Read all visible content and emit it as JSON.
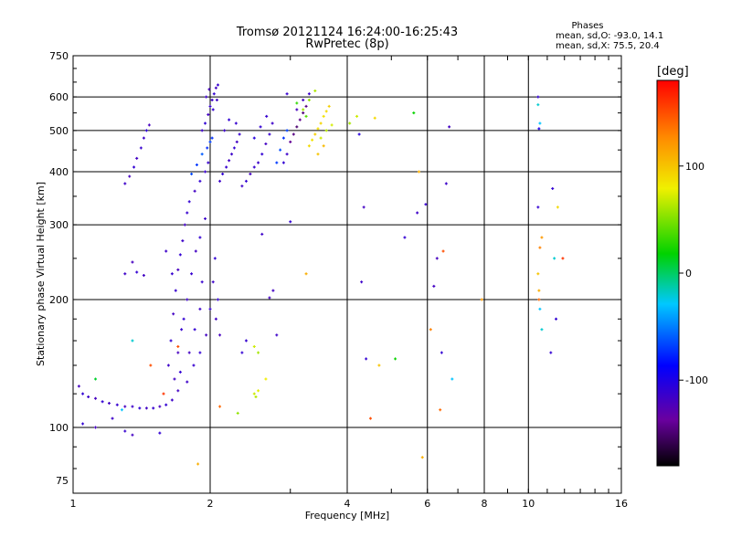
{
  "chart_data": {
    "type": "scatter",
    "title": "Tromsø 20121124 16:24:00-16:25:43",
    "subtitle": "RwPretec (8p)",
    "xlabel": "Frequency [MHz]",
    "ylabel": "Stationary phase Virtual Height [km]",
    "x_scale": "log",
    "y_scale": "log",
    "xlim": [
      1,
      16
    ],
    "ylim": [
      70,
      750
    ],
    "x_ticks": [
      1,
      2,
      4,
      6,
      8,
      10,
      16
    ],
    "y_ticks": [
      75,
      100,
      200,
      300,
      400,
      500,
      600,
      750
    ],
    "grid": true,
    "stats": {
      "heading": "Phases",
      "line_o": "mean, sd,O:  -93.0, 14.1",
      "line_x": "mean, sd,X:  75.5, 20.4"
    },
    "colorbar": {
      "label": "[deg]",
      "range": [
        -180,
        180
      ],
      "ticks": [
        -100,
        0,
        100
      ],
      "palette": "rainbow: black-purple-blue-cyan-green-yellow-orange-red"
    },
    "series": [
      {
        "points": [
          [
            1.03,
            125,
            -120
          ],
          [
            1.05,
            120,
            -110
          ],
          [
            1.08,
            118,
            -115
          ],
          [
            1.12,
            117,
            -120
          ],
          [
            1.16,
            115,
            -110
          ],
          [
            1.2,
            114,
            -118
          ],
          [
            1.25,
            113,
            -112
          ],
          [
            1.3,
            112,
            -120
          ],
          [
            1.35,
            112,
            -115
          ],
          [
            1.4,
            111,
            -108
          ],
          [
            1.45,
            111,
            -118
          ],
          [
            1.5,
            111,
            -112
          ],
          [
            1.55,
            112,
            -120
          ],
          [
            1.6,
            113,
            -110
          ],
          [
            1.65,
            116,
            -115
          ],
          [
            1.7,
            122,
            -118
          ],
          [
            1.05,
            102,
            -110
          ],
          [
            1.12,
            100,
            -120
          ],
          [
            1.22,
            105,
            -115
          ],
          [
            1.3,
            98,
            -112
          ],
          [
            1.35,
            96,
            -118
          ],
          [
            1.55,
            97,
            -110
          ],
          [
            1.3,
            375,
            -115
          ],
          [
            1.33,
            390,
            -120
          ],
          [
            1.36,
            410,
            -110
          ],
          [
            1.38,
            430,
            -118
          ],
          [
            1.41,
            455,
            -112
          ],
          [
            1.43,
            480,
            -115
          ],
          [
            1.45,
            500,
            -108
          ],
          [
            1.47,
            515,
            -120
          ],
          [
            1.3,
            230,
            -115
          ],
          [
            1.38,
            232,
            -110
          ],
          [
            1.43,
            228,
            -118
          ],
          [
            1.35,
            245,
            -120
          ],
          [
            1.62,
            140,
            -115
          ],
          [
            1.64,
            160,
            -110
          ],
          [
            1.66,
            185,
            -118
          ],
          [
            1.68,
            210,
            -112
          ],
          [
            1.7,
            235,
            -120
          ],
          [
            1.72,
            255,
            -110
          ],
          [
            1.74,
            275,
            -115
          ],
          [
            1.76,
            300,
            -118
          ],
          [
            1.78,
            320,
            -112
          ],
          [
            1.8,
            340,
            -110
          ],
          [
            1.75,
            180,
            -110
          ],
          [
            1.78,
            200,
            -115
          ],
          [
            1.82,
            230,
            -112
          ],
          [
            1.86,
            260,
            -118
          ],
          [
            1.9,
            280,
            -110
          ],
          [
            1.95,
            310,
            -115
          ],
          [
            1.7,
            150,
            -120
          ],
          [
            1.73,
            170,
            -112
          ],
          [
            1.8,
            150,
            -118
          ],
          [
            1.85,
            170,
            -110
          ],
          [
            1.9,
            190,
            -115
          ],
          [
            1.92,
            220,
            -112
          ],
          [
            1.67,
            130,
            -118
          ],
          [
            1.72,
            135,
            -110
          ],
          [
            1.78,
            128,
            -115
          ],
          [
            1.84,
            140,
            -112
          ],
          [
            1.9,
            150,
            -110
          ],
          [
            1.96,
            165,
            -118
          ],
          [
            2.0,
            190,
            -112
          ],
          [
            2.03,
            220,
            -115
          ],
          [
            2.05,
            250,
            -110
          ],
          [
            2.06,
            180,
            -118
          ],
          [
            2.08,
            200,
            -112
          ],
          [
            2.1,
            165,
            -120
          ],
          [
            1.6,
            260,
            -115
          ],
          [
            1.65,
            230,
            -112
          ],
          [
            1.85,
            360,
            -118
          ],
          [
            1.9,
            380,
            -110
          ],
          [
            1.95,
            400,
            -115
          ],
          [
            1.98,
            420,
            -112
          ],
          [
            1.82,
            395,
            -65
          ],
          [
            1.87,
            415,
            -70
          ],
          [
            1.92,
            440,
            -60
          ],
          [
            1.97,
            455,
            -75
          ],
          [
            2.0,
            470,
            -68
          ],
          [
            2.02,
            480,
            -72
          ],
          [
            1.92,
            500,
            -115
          ],
          [
            1.95,
            520,
            -110
          ],
          [
            1.98,
            545,
            -118
          ],
          [
            2.0,
            570,
            -112
          ],
          [
            2.02,
            590,
            -115
          ],
          [
            2.04,
            610,
            -110
          ],
          [
            2.06,
            630,
            -118
          ],
          [
            2.08,
            640,
            -112
          ],
          [
            1.96,
            600,
            -115
          ],
          [
            1.99,
            625,
            -120
          ],
          [
            2.03,
            560,
            -110
          ],
          [
            2.07,
            590,
            -118
          ],
          [
            2.1,
            380,
            -115
          ],
          [
            2.13,
            395,
            -110
          ],
          [
            2.17,
            410,
            -112
          ],
          [
            2.2,
            425,
            -118
          ],
          [
            2.23,
            440,
            -115
          ],
          [
            2.26,
            455,
            -110
          ],
          [
            2.29,
            470,
            -118
          ],
          [
            2.32,
            490,
            -112
          ],
          [
            2.15,
            500,
            -115
          ],
          [
            2.2,
            530,
            -110
          ],
          [
            2.28,
            520,
            -112
          ],
          [
            2.35,
            370,
            -115
          ],
          [
            2.4,
            380,
            -110
          ],
          [
            2.45,
            395,
            -118
          ],
          [
            2.5,
            410,
            -112
          ],
          [
            2.55,
            420,
            -115
          ],
          [
            2.6,
            440,
            -110
          ],
          [
            2.65,
            465,
            -118
          ],
          [
            2.7,
            490,
            -112
          ],
          [
            2.74,
            520,
            -115
          ],
          [
            2.5,
            480,
            -105
          ],
          [
            2.58,
            510,
            -110
          ],
          [
            2.66,
            540,
            -112
          ],
          [
            2.8,
            420,
            -70
          ],
          [
            2.85,
            450,
            -65
          ],
          [
            2.9,
            480,
            -72
          ],
          [
            2.95,
            500,
            -68
          ],
          [
            2.9,
            420,
            -110
          ],
          [
            2.95,
            440,
            -115
          ],
          [
            3.0,
            470,
            -140
          ],
          [
            3.05,
            490,
            -145
          ],
          [
            3.1,
            510,
            -150
          ],
          [
            3.15,
            530,
            -142
          ],
          [
            3.2,
            550,
            -148
          ],
          [
            3.25,
            570,
            -145
          ],
          [
            3.1,
            560,
            -120
          ],
          [
            3.2,
            590,
            -118
          ],
          [
            3.3,
            610,
            -115
          ],
          [
            2.95,
            610,
            -112
          ],
          [
            3.3,
            460,
            90
          ],
          [
            3.35,
            475,
            85
          ],
          [
            3.4,
            490,
            95
          ],
          [
            3.45,
            505,
            88
          ],
          [
            3.5,
            520,
            92
          ],
          [
            3.55,
            540,
            86
          ],
          [
            3.6,
            555,
            90
          ],
          [
            3.65,
            570,
            95
          ],
          [
            3.5,
            480,
            70
          ],
          [
            3.6,
            500,
            65
          ],
          [
            3.7,
            515,
            72
          ],
          [
            3.45,
            440,
            100
          ],
          [
            3.55,
            460,
            105
          ],
          [
            3.2,
            560,
            60
          ],
          [
            3.3,
            590,
            55
          ],
          [
            3.4,
            620,
            62
          ],
          [
            3.1,
            580,
            30
          ],
          [
            3.25,
            540,
            40
          ],
          [
            2.5,
            120,
            70
          ],
          [
            2.55,
            122,
            75
          ],
          [
            2.52,
            118,
            65
          ],
          [
            2.5,
            155,
            70
          ],
          [
            2.55,
            150,
            60
          ],
          [
            2.3,
            108,
            55
          ],
          [
            2.65,
            130,
            80
          ],
          [
            3.25,
            230,
            110
          ],
          [
            3.0,
            305,
            -110
          ],
          [
            2.6,
            285,
            -115
          ],
          [
            2.7,
            202,
            -118
          ],
          [
            2.4,
            160,
            -112
          ],
          [
            2.35,
            150,
            -110
          ],
          [
            2.8,
            165,
            -115
          ],
          [
            2.75,
            210,
            -118
          ],
          [
            1.88,
            82,
            110
          ],
          [
            1.7,
            155,
            150
          ],
          [
            1.48,
            140,
            150
          ],
          [
            1.58,
            120,
            160
          ],
          [
            2.1,
            112,
            140
          ],
          [
            1.35,
            160,
            -20
          ],
          [
            1.12,
            130,
            10
          ],
          [
            1.28,
            110,
            -30
          ],
          [
            4.25,
            490,
            -105
          ],
          [
            4.4,
            145,
            -110
          ],
          [
            4.3,
            220,
            -115
          ],
          [
            4.5,
            105,
            150
          ],
          [
            4.35,
            330,
            -118
          ],
          [
            4.7,
            140,
            100
          ],
          [
            4.05,
            520,
            60
          ],
          [
            4.2,
            540,
            70
          ],
          [
            4.6,
            535,
            90
          ],
          [
            5.1,
            145,
            20
          ],
          [
            5.35,
            280,
            -110
          ],
          [
            5.7,
            320,
            -115
          ],
          [
            5.95,
            335,
            -112
          ],
          [
            6.2,
            215,
            -118
          ],
          [
            6.3,
            250,
            -120
          ],
          [
            6.45,
            150,
            -110
          ],
          [
            6.6,
            375,
            -115
          ],
          [
            6.7,
            510,
            -118
          ],
          [
            6.5,
            260,
            150
          ],
          [
            5.75,
            400,
            110
          ],
          [
            5.85,
            85,
            110
          ],
          [
            6.8,
            130,
            -30
          ],
          [
            6.1,
            170,
            130
          ],
          [
            5.6,
            550,
            20
          ],
          [
            6.4,
            110,
            140
          ],
          [
            7.9,
            200,
            120
          ],
          [
            10.5,
            600,
            -110
          ],
          [
            10.5,
            575,
            -20
          ],
          [
            10.6,
            520,
            -30
          ],
          [
            10.55,
            505,
            -100
          ],
          [
            10.5,
            330,
            -110
          ],
          [
            10.7,
            280,
            120
          ],
          [
            10.6,
            265,
            130
          ],
          [
            10.5,
            230,
            100
          ],
          [
            10.55,
            210,
            110
          ],
          [
            10.6,
            190,
            -30
          ],
          [
            10.7,
            170,
            -20
          ],
          [
            11.3,
            365,
            -110
          ],
          [
            11.6,
            330,
            90
          ],
          [
            11.9,
            250,
            160
          ],
          [
            11.5,
            180,
            -110
          ],
          [
            11.2,
            150,
            -110
          ],
          [
            11.4,
            250,
            -20
          ],
          [
            10.55,
            200,
            140
          ]
        ]
      }
    ]
  }
}
